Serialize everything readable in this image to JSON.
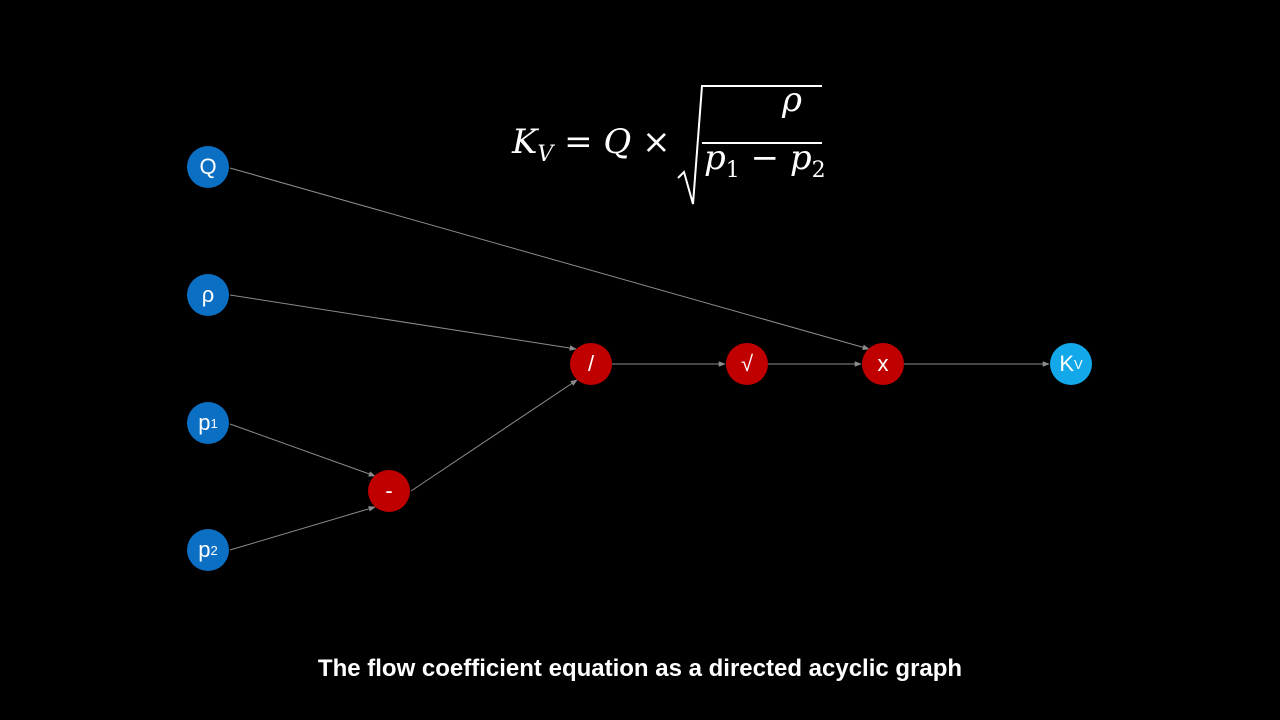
{
  "formula": {
    "lhs_symbol": "K",
    "lhs_sub": "V",
    "equals": "=",
    "q": "Q",
    "times": "×",
    "numerator": "ρ",
    "den_p1": "p",
    "den_p1_sub": "1",
    "minus": "−",
    "den_p2": "p",
    "den_p2_sub": "2"
  },
  "nodes": {
    "q": {
      "label": "Q",
      "sub": ""
    },
    "rho": {
      "label": "ρ",
      "sub": ""
    },
    "p1": {
      "label": "p",
      "sub": "1"
    },
    "p2": {
      "label": "p",
      "sub": "2"
    },
    "minus": {
      "label": "-",
      "sub": ""
    },
    "divide": {
      "label": "/",
      "sub": ""
    },
    "sqrt": {
      "label": "√",
      "sub": ""
    },
    "multiply": {
      "label": "x",
      "sub": ""
    },
    "kv": {
      "label": "K",
      "sub": "V"
    }
  },
  "colors": {
    "background": "#000000",
    "input_node": "#0b6fc4",
    "operator_node": "#c00000",
    "output_node": "#12a8ea",
    "edge": "#8c8c8c"
  },
  "caption": "The flow coefficient equation as a directed acyclic graph"
}
